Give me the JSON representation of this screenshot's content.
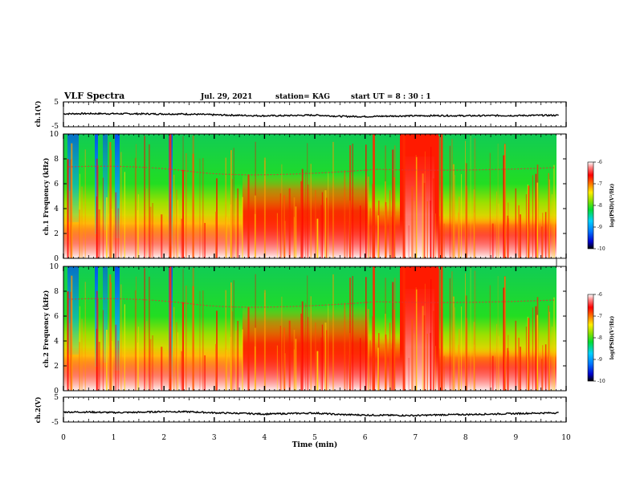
{
  "header": {
    "title": "VLF Spectra",
    "date": "Jul. 29, 2021",
    "station": "station= KAG",
    "start": "start UT = 8 : 30 : 1"
  },
  "chart_data": [
    {
      "type": "line",
      "panel": "ch1-waveform",
      "ylabel": "ch.1(V)",
      "ylim": [
        -5,
        5
      ],
      "yticks": [
        "5",
        "-5"
      ],
      "xlim": [
        0,
        10
      ],
      "x": [
        0,
        0.5,
        1.0,
        1.5,
        2.0,
        2.5,
        3.0,
        3.5,
        4.0,
        4.5,
        5.0,
        5.5,
        6.0,
        6.5,
        7.0,
        7.5,
        8.0,
        8.5,
        9.0,
        9.5,
        9.85
      ],
      "y": [
        0.2,
        0.3,
        0.25,
        0.2,
        0.15,
        0.1,
        -0.2,
        -0.4,
        -0.6,
        -0.5,
        -0.3,
        -0.8,
        -0.9,
        -0.7,
        -0.6,
        -0.5,
        -0.6,
        -0.5,
        -0.5,
        -0.4,
        -0.4
      ]
    },
    {
      "type": "heatmap",
      "panel": "ch1-spectrogram",
      "ylabel": "ch.1 Frequency (kHz)",
      "ylim": [
        0,
        10
      ],
      "yticks": [
        "0",
        "2",
        "4",
        "6",
        "8",
        "10"
      ],
      "xlim": [
        0,
        10
      ],
      "colorbar": {
        "label": "log(PSD)(V²/Hz)",
        "min": -10,
        "max": -6,
        "ticks": [
          "-6",
          "-7",
          "-8",
          "-9",
          "-10"
        ]
      }
    },
    {
      "type": "heatmap",
      "panel": "ch2-spectrogram",
      "ylabel": "ch.2 Frequency (kHz)",
      "ylim": [
        0,
        10
      ],
      "yticks": [
        "0",
        "2",
        "4",
        "6",
        "8",
        "10"
      ],
      "xlim": [
        0,
        10
      ],
      "colorbar": {
        "label": "log(PSD)(V²/Hz)",
        "min": -10,
        "max": -6,
        "ticks": [
          "-6",
          "-7",
          "-8",
          "-9",
          "-10"
        ]
      }
    },
    {
      "type": "line",
      "panel": "ch2-waveform",
      "ylabel": "ch.2(V)",
      "ylim": [
        -5,
        5
      ],
      "yticks": [
        "5",
        "-5"
      ],
      "xlim": [
        0,
        10
      ],
      "x": [
        0,
        0.5,
        1.0,
        1.5,
        2.0,
        2.5,
        3.0,
        3.5,
        4.0,
        4.5,
        5.0,
        5.5,
        6.0,
        6.5,
        7.0,
        7.5,
        8.0,
        8.5,
        9.0,
        9.5,
        9.85
      ],
      "y": [
        -1.0,
        -1.0,
        -1.2,
        -1.1,
        -0.8,
        -0.9,
        -1.3,
        -1.5,
        -1.8,
        -1.6,
        -1.4,
        -2.0,
        -2.2,
        -2.3,
        -2.4,
        -2.1,
        -2.0,
        -1.8,
        -1.6,
        -1.4,
        -1.3
      ]
    }
  ],
  "xaxis": {
    "label": "Time (min)",
    "ticks": [
      "0",
      "1",
      "2",
      "3",
      "4",
      "5",
      "6",
      "7",
      "8",
      "9",
      "10"
    ]
  }
}
